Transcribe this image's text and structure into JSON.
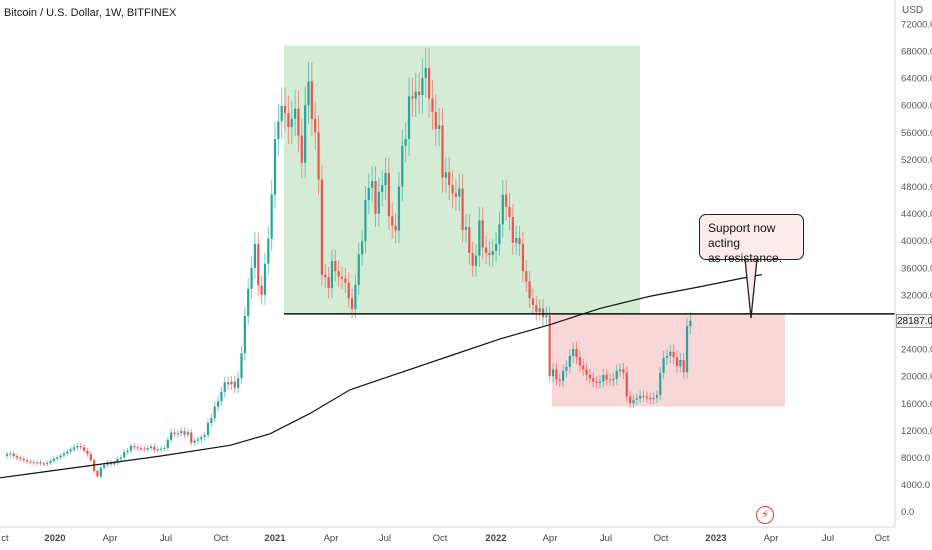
{
  "header": {
    "title": "Bitcoin / U.S. Dollar, 1W, BITFINEX",
    "currency": "USD"
  },
  "annotation": {
    "callout_text": "Support now acting as resistance.",
    "callout_line1": "Support now acting",
    "callout_line2": "as resistance."
  },
  "price_label": "28187.0",
  "colors": {
    "up": "#26a69a",
    "down": "#ef5350",
    "bull_zone": "#d4ecd6",
    "bear_zone": "#f8d7d8",
    "line": "#111111"
  },
  "chart_data": {
    "type": "candlestick",
    "y_axis_ticks": [
      "72000.0",
      "68000.0",
      "64000.0",
      "60000.0",
      "56000.0",
      "52000.0",
      "48000.0",
      "44000.0",
      "40000.0",
      "36000.0",
      "32000.0",
      "28000.0",
      "24000.0",
      "20000.0",
      "16000.0",
      "12000.0",
      "8000.0",
      "4000.0",
      "0.0"
    ],
    "y_values": [
      72000,
      68000,
      64000,
      60000,
      56000,
      52000,
      48000,
      44000,
      40000,
      36000,
      32000,
      28000,
      24000,
      20000,
      16000,
      12000,
      8000,
      4000,
      0
    ],
    "x_axis_ticks": [
      "ct",
      "2020",
      "Apr",
      "Jul",
      "Oct",
      "2021",
      "Apr",
      "Jul",
      "Oct",
      "2022",
      "Apr",
      "Jul",
      "Oct",
      "2023",
      "Apr",
      "Jul",
      "Oct"
    ],
    "ylim": [
      -1000,
      75000
    ],
    "resistance_level": 29200,
    "bull_zone": {
      "from": "2021-01",
      "to": "2022-06",
      "low": 29200,
      "high": 68800
    },
    "bear_zone": {
      "from": "2022-05",
      "to": "2023-04",
      "low": 15500,
      "high": 29200
    },
    "moving_average": [
      [
        -13,
        4500
      ],
      [
        0,
        5000
      ],
      [
        30,
        5600
      ],
      [
        90,
        6800
      ],
      [
        160,
        8200
      ],
      [
        230,
        9800
      ],
      [
        270,
        11500
      ],
      [
        310,
        14500
      ],
      [
        350,
        18000
      ],
      [
        400,
        20500
      ],
      [
        450,
        23000
      ],
      [
        500,
        25500
      ],
      [
        550,
        27600
      ],
      [
        600,
        30000
      ],
      [
        650,
        31800
      ],
      [
        700,
        33200
      ],
      [
        740,
        34400
      ],
      [
        762,
        35000
      ]
    ],
    "weekly_closes": [
      8500,
      8600,
      8200,
      8000,
      7800,
      7600,
      7400,
      7300,
      7200,
      7300,
      7100,
      7000,
      7200,
      7500,
      7800,
      8000,
      8300,
      8600,
      8900,
      9200,
      9500,
      9700,
      9500,
      9000,
      8500,
      7600,
      6000,
      5200,
      6500,
      6900,
      7300,
      7000,
      7200,
      7800,
      8000,
      8800,
      9000,
      9700,
      9500,
      9400,
      9300,
      9200,
      9400,
      9600,
      9100,
      9200,
      9300,
      9400,
      10600,
      11700,
      11500,
      11600,
      11900,
      11400,
      11700,
      10200,
      10500,
      10700,
      11000,
      11300,
      13100,
      13800,
      15500,
      16300,
      17700,
      19100,
      18800,
      19200,
      18300,
      19700,
      23400,
      28900,
      32900,
      36000,
      39500,
      33400,
      32000,
      36600,
      40300,
      46800,
      55000,
      57600,
      59900,
      58800,
      56800,
      58000,
      59500,
      55500,
      51500,
      60000,
      63500,
      58000,
      56000,
      49000,
      35000,
      34600,
      33000,
      37000,
      35500,
      34700,
      34400,
      33800,
      31500,
      29900,
      33500,
      38000,
      39900,
      46000,
      47800,
      48800,
      44000,
      47200,
      48200,
      50000,
      43600,
      42200,
      41500,
      48000,
      54000,
      55000,
      61300,
      61000,
      62000,
      61500,
      64000,
      65500,
      61000,
      59000,
      56500,
      57000,
      49300,
      50100,
      48200,
      47000,
      46500,
      47700,
      41600,
      42000,
      38200,
      36300,
      37800,
      43000,
      39000,
      38200,
      37900,
      38500,
      39500,
      42400,
      46800,
      45000,
      43500,
      39700,
      40400,
      39500,
      35500,
      34000,
      31500,
      30500,
      29500,
      30000,
      28700,
      29000,
      20000,
      21000,
      19500,
      19300,
      20800,
      21400,
      23000,
      24000,
      22800,
      21600,
      21000,
      20200,
      19700,
      19200,
      19000,
      19200,
      20200,
      19500,
      19400,
      19600,
      20800,
      21000,
      20500,
      17000,
      16000,
      16500,
      16700,
      17100,
      17000,
      16800,
      16600,
      16800,
      17200,
      20500,
      22700,
      23000,
      23600,
      22800,
      21500,
      22400,
      20600,
      27400,
      28187
    ]
  }
}
